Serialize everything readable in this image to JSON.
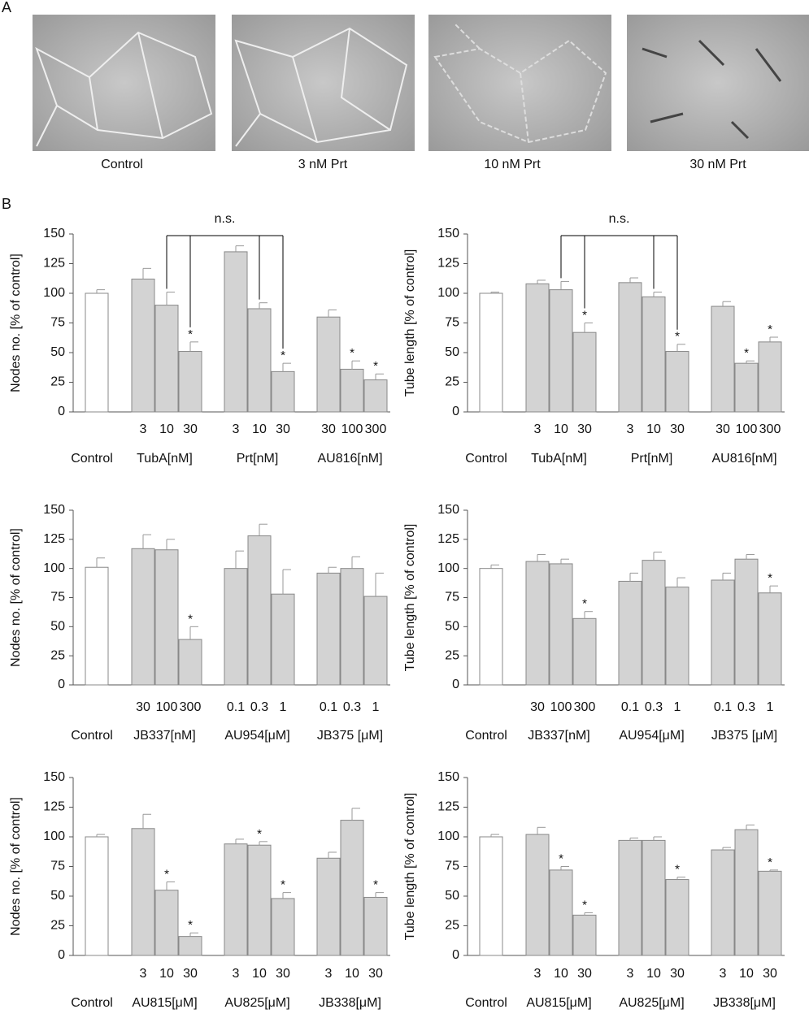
{
  "panels": {
    "a": "A",
    "b": "B"
  },
  "photos": [
    "Control",
    "3 nM Prt",
    "10 nM Prt",
    "30 nM Prt"
  ],
  "chart_data": [
    {
      "type": "bar",
      "ylabel": "Nodes  no. [% of control]",
      "ylim": [
        0,
        150
      ],
      "yticks": [
        0,
        25,
        50,
        75,
        100,
        125,
        150
      ],
      "categories": [
        null,
        "3",
        "10",
        "30",
        "3",
        "10",
        "30",
        "30",
        "100",
        "300"
      ],
      "groups": [
        "Control",
        "TubA[nM]",
        "Prt[nM]",
        "AU816[nM]"
      ],
      "values": [
        100,
        112,
        90,
        51,
        135,
        87,
        34,
        80,
        36,
        27
      ],
      "errors": [
        3,
        9,
        11,
        8,
        5,
        5,
        7,
        6,
        7,
        5
      ],
      "significance": [
        null,
        null,
        null,
        "*",
        null,
        null,
        "*",
        null,
        "*",
        "*"
      ],
      "annotation": "n.s.",
      "colors": [
        "#ffffff",
        "#d3d3d3"
      ]
    },
    {
      "type": "bar",
      "ylabel": "Tube length [% of control]",
      "ylim": [
        0,
        150
      ],
      "yticks": [
        0,
        25,
        50,
        75,
        100,
        125,
        150
      ],
      "categories": [
        null,
        "3",
        "10",
        "30",
        "3",
        "10",
        "30",
        "30",
        "100",
        "300"
      ],
      "groups": [
        "Control",
        "TubA[nM]",
        "Prt[nM]",
        "AU816[nM]"
      ],
      "values": [
        100,
        108,
        103,
        67,
        109,
        97,
        51,
        89,
        41,
        59
      ],
      "errors": [
        1,
        3,
        7,
        8,
        4,
        4,
        6,
        4,
        2,
        4
      ],
      "significance": [
        null,
        null,
        null,
        "*",
        null,
        null,
        "*",
        null,
        "*",
        "*"
      ],
      "annotation": "n.s.",
      "colors": [
        "#ffffff",
        "#d3d3d3"
      ]
    },
    {
      "type": "bar",
      "ylabel": "Nodes  no. [% of control]",
      "ylim": [
        0,
        150
      ],
      "yticks": [
        0,
        25,
        50,
        75,
        100,
        125,
        150
      ],
      "categories": [
        null,
        "30",
        "100",
        "300",
        "0.1",
        "0.3",
        "1",
        "0.1",
        "0.3",
        "1"
      ],
      "groups": [
        "Control",
        "JB337[nM]",
        "AU954[μM]",
        "JB375 [μM]"
      ],
      "values": [
        101,
        117,
        116,
        39,
        100,
        128,
        78,
        96,
        100,
        76
      ],
      "errors": [
        8,
        12,
        9,
        11,
        15,
        10,
        21,
        5,
        10,
        20
      ],
      "significance": [
        null,
        null,
        null,
        "*",
        null,
        null,
        null,
        null,
        null,
        null
      ],
      "colors": [
        "#ffffff",
        "#d3d3d3"
      ]
    },
    {
      "type": "bar",
      "ylabel": "Tube length [% of control]",
      "ylim": [
        0,
        150
      ],
      "yticks": [
        0,
        25,
        50,
        75,
        100,
        125,
        150
      ],
      "categories": [
        null,
        "30",
        "100",
        "300",
        "0.1",
        "0.3",
        "1",
        "0.1",
        "0.3",
        "1"
      ],
      "groups": [
        "Control",
        "JB337[nM]",
        "AU954[μM]",
        "JB375 [μM]"
      ],
      "values": [
        100,
        106,
        104,
        57,
        89,
        107,
        84,
        90,
        108,
        79
      ],
      "errors": [
        3,
        6,
        4,
        6,
        7,
        7,
        8,
        6,
        4,
        6
      ],
      "significance": [
        null,
        null,
        null,
        "*",
        null,
        null,
        null,
        null,
        null,
        "*"
      ],
      "colors": [
        "#ffffff",
        "#d3d3d3"
      ]
    },
    {
      "type": "bar",
      "ylabel": "Nodes  no. [% of control]",
      "ylim": [
        0,
        150
      ],
      "yticks": [
        0,
        25,
        50,
        75,
        100,
        125,
        150
      ],
      "categories": [
        null,
        "3",
        "10",
        "30",
        "3",
        "10",
        "30",
        "3",
        "10",
        "30"
      ],
      "groups": [
        "Control",
        "AU815[μM]",
        "AU825[μM]",
        "JB338[μM]"
      ],
      "values": [
        100,
        107,
        55,
        16,
        94,
        93,
        48,
        82,
        114,
        49
      ],
      "errors": [
        2,
        12,
        7,
        3,
        4,
        3,
        5,
        5,
        10,
        4
      ],
      "significance": [
        null,
        null,
        "*",
        "*",
        null,
        "*",
        "*",
        null,
        null,
        "*"
      ],
      "colors": [
        "#ffffff",
        "#d3d3d3"
      ]
    },
    {
      "type": "bar",
      "ylabel": "Tube length [% of control]",
      "ylim": [
        0,
        150
      ],
      "yticks": [
        0,
        25,
        50,
        75,
        100,
        125,
        150
      ],
      "categories": [
        null,
        "3",
        "10",
        "30",
        "3",
        "10",
        "30",
        "3",
        "10",
        "30"
      ],
      "groups": [
        "Control",
        "AU815[μM]",
        "AU825[μM]",
        "JB338[μM]"
      ],
      "values": [
        100,
        102,
        72,
        34,
        97,
        97,
        64,
        89,
        106,
        71
      ],
      "errors": [
        2,
        6,
        3,
        2,
        2,
        3,
        2,
        2,
        4,
        1
      ],
      "significance": [
        null,
        null,
        "*",
        "*",
        null,
        null,
        "*",
        null,
        null,
        "*"
      ],
      "colors": [
        "#ffffff",
        "#d3d3d3"
      ]
    }
  ]
}
